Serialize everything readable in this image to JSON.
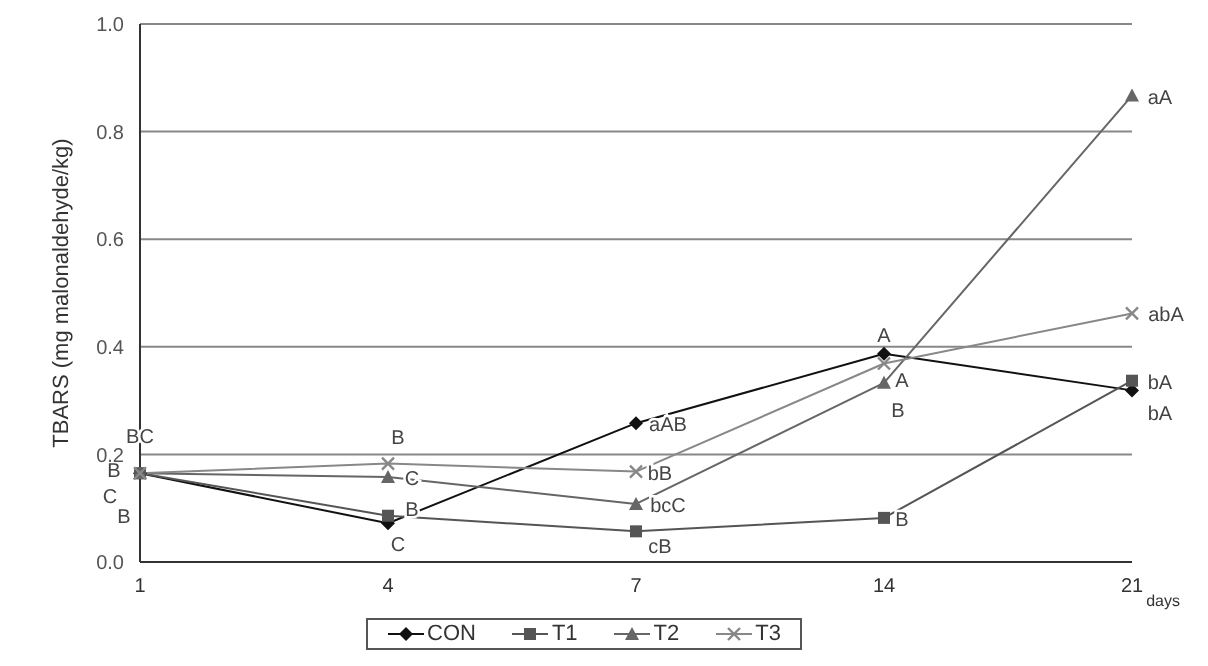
{
  "chart_data": {
    "type": "line",
    "xlabel": "days",
    "ylabel": "TBARS (mg malonaldehyde/kg)",
    "categories": [
      "1",
      "4",
      "7",
      "14",
      "21"
    ],
    "series": [
      {
        "name": "CON",
        "color": "#111111",
        "marker": "diamond",
        "values": [
          0.165,
          0.072,
          0.258,
          0.387,
          0.319
        ]
      },
      {
        "name": "T1",
        "color": "#555555",
        "marker": "square",
        "values": [
          0.165,
          0.086,
          0.057,
          0.082,
          0.337
        ]
      },
      {
        "name": "T2",
        "color": "#666666",
        "marker": "triangle",
        "values": [
          0.165,
          0.158,
          0.108,
          0.333,
          0.867
        ]
      },
      {
        "name": "T3",
        "color": "#888888",
        "marker": "cross",
        "values": [
          0.165,
          0.183,
          0.168,
          0.369,
          0.462
        ]
      }
    ],
    "ylim": [
      0,
      1
    ],
    "yticks": [
      {
        "value": 0,
        "label": "0.0"
      },
      0.2,
      0.4,
      0.6,
      0.8,
      {
        "value": 1,
        "label": "1.0"
      }
    ],
    "grid": "y",
    "legend": "bottom",
    "annotations": [
      {
        "text": "BC",
        "x": "1",
        "y": 0.165
      },
      {
        "text": "B",
        "x": "1",
        "y": 0.165
      },
      {
        "text": "C",
        "x": "1",
        "y": 0.165
      },
      {
        "text": "B",
        "x": "1",
        "y": 0.165
      },
      {
        "text": "B",
        "x": "4",
        "y": 0.183
      },
      {
        "text": "C",
        "x": "4",
        "y": 0.158
      },
      {
        "text": "B",
        "x": "4",
        "y": 0.086
      },
      {
        "text": "C",
        "x": "4",
        "y": 0.072
      },
      {
        "text": "aAB",
        "x": "7",
        "y": 0.258
      },
      {
        "text": "bB",
        "x": "7",
        "y": 0.168
      },
      {
        "text": "bcC",
        "x": "7",
        "y": 0.108
      },
      {
        "text": "cB",
        "x": "7",
        "y": 0.057
      },
      {
        "text": "A",
        "x": "14",
        "y": 0.387
      },
      {
        "text": "A",
        "x": "14",
        "y": 0.333
      },
      {
        "text": "B",
        "x": "14",
        "y": 0.333
      },
      {
        "text": "B",
        "x": "14",
        "y": 0.082
      },
      {
        "text": "aA",
        "x": "21",
        "y": 0.867
      },
      {
        "text": "abA",
        "x": "21",
        "y": 0.462
      },
      {
        "text": "bA",
        "x": "21",
        "y": 0.337
      },
      {
        "text": "bA",
        "x": "21",
        "y": 0.319
      }
    ]
  }
}
